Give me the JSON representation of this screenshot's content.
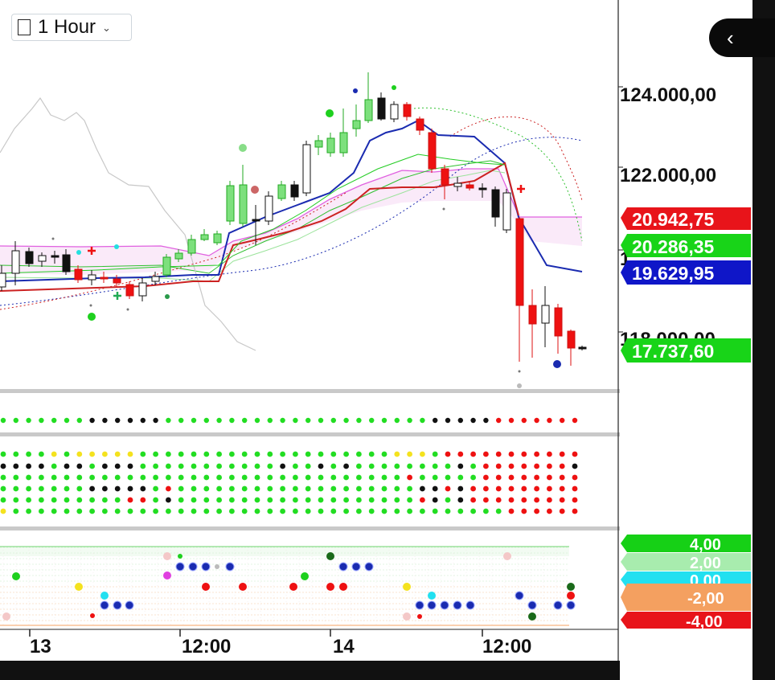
{
  "toolbar": {
    "timeframe_label": "1 Hour",
    "timeframe_icon": "square-icon",
    "dropdown_icon": "chevron-down-icon",
    "collapse_icon": "chevron-left-icon",
    "collapse_glyph": "‹"
  },
  "price_axis": {
    "tick_labels": [
      "124.000,00",
      "122.000,00",
      "118.000,00"
    ],
    "partial_tick_label": "1"
  },
  "price_badges": [
    {
      "label": "20.942,75",
      "color": "#e8141a"
    },
    {
      "label": "20.286,35",
      "color": "#18d418"
    },
    {
      "label": "19.629,95",
      "color": "#0f16c8"
    },
    {
      "label": "17.737,60",
      "color": "#18d418"
    }
  ],
  "oscillator_badges": [
    {
      "label": "4,00",
      "color": "#16d016"
    },
    {
      "label": "2,00",
      "color": "#a8ecae"
    },
    {
      "label": "0,00",
      "color": "#22e0f0"
    },
    {
      "label": "-2,00",
      "color": "#f4a060"
    },
    {
      "label": "-4,00",
      "color": "#e8141a"
    }
  ],
  "time_axis": {
    "labels": [
      "13",
      "12:00",
      "14",
      "12:00"
    ]
  },
  "colors": {
    "bull": "#22cc22",
    "bear": "#ee1111",
    "kijun": "#1a2bb0",
    "tenkan": "#cc2222",
    "cloud": "#e060e0",
    "lagging": "#c8c8c8"
  }
}
